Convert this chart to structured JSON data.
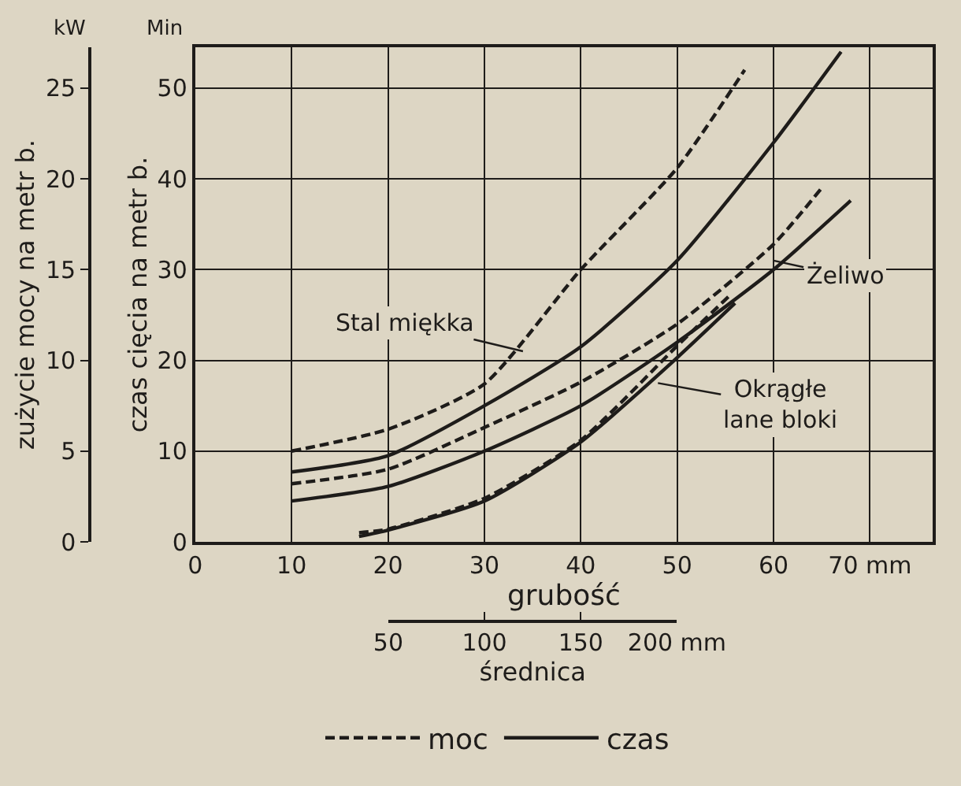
{
  "chart_data": {
    "type": "line",
    "xlabel": "grubość",
    "ylabel": "czas cięcia na metr b.",
    "y2label": "zużycie mocy na metr b.",
    "x2label": "średnica",
    "xlim": [
      0,
      76.5
    ],
    "xticks": [
      0,
      10,
      20,
      30,
      40,
      50,
      60,
      {
        "value": 70,
        "label": "70 mm"
      }
    ],
    "x2lim": [
      50,
      200
    ],
    "x2ticks": [
      50,
      100,
      150,
      {
        "value": 200,
        "label": "200 mm"
      }
    ],
    "ylim": [
      0,
      54.5
    ],
    "yticks": [
      0,
      10,
      20,
      30,
      40,
      50
    ],
    "y2lim": [
      0,
      27.25
    ],
    "y2ticks": [
      0,
      5,
      10,
      15,
      20,
      25
    ],
    "grid": true,
    "legend": "bottom",
    "marker": "none",
    "series": [
      {
        "name": "moc",
        "color": "#1e1c1a",
        "axis": "y2",
        "line_style": "dashed",
        "x": [
          10,
          20,
          30,
          40,
          50,
          57
        ],
        "values": [
          5,
          6.2,
          8.7,
          15,
          20.6,
          26
        ]
      },
      {
        "name": "czas",
        "color": "#1e1c1a",
        "line_style": "solid",
        "x": [
          10,
          20,
          30,
          40,
          50,
          60,
          67
        ],
        "values": [
          7.7,
          9.5,
          15,
          21.5,
          31,
          44,
          54
        ]
      },
      {
        "color": "#1e1c1a",
        "axis": "y2",
        "line_style": "dashed",
        "x": [
          10,
          20,
          30,
          40,
          50,
          60,
          65
        ],
        "values": [
          3.2,
          4,
          6.3,
          8.8,
          12,
          16.4,
          19.5
        ]
      },
      {
        "color": "#1e1c1a",
        "line_style": "solid",
        "x": [
          10,
          20,
          30,
          40,
          50,
          60,
          68
        ],
        "values": [
          4.5,
          6.1,
          10,
          15,
          22,
          30,
          37.6
        ]
      },
      {
        "color": "#1e1c1a",
        "axis": "y2",
        "line_style": "dashed",
        "x": [
          17,
          20,
          30,
          40,
          50,
          55.5
        ],
        "values": [
          0.5,
          0.7,
          2.4,
          5.6,
          10.8,
          13.6
        ]
      },
      {
        "color": "#1e1c1a",
        "line_style": "solid",
        "x": [
          17,
          20,
          30,
          40,
          50,
          56
        ],
        "values": [
          0.6,
          1.3,
          4.5,
          11,
          20.3,
          26.3
        ]
      }
    ],
    "annotations": [
      {
        "text": "Stal miękka",
        "x": 34,
        "y": 21
      },
      {
        "text": "Żeliwo",
        "x": 60,
        "y": 31
      },
      {
        "text": "Okrągłe\nlane bloki",
        "x": 48,
        "y": 17.5
      },
      "kW",
      "Min"
    ]
  }
}
